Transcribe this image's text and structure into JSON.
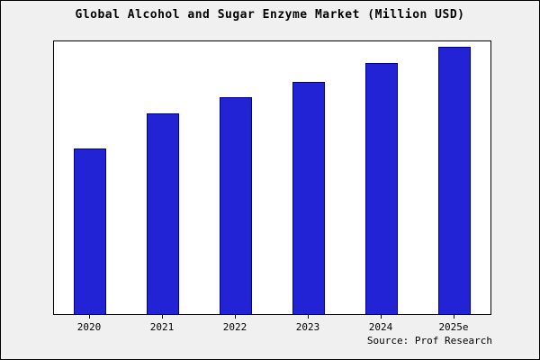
{
  "chart_data": {
    "type": "bar",
    "title": "Global Alcohol and Sugar Enzyme Market (Million USD)",
    "categories": [
      "2020",
      "2021",
      "2022",
      "2023",
      "2024",
      "2025e"
    ],
    "values": [
      62,
      75,
      81,
      87,
      94,
      100
    ],
    "xlabel": "",
    "ylabel": "",
    "ylim": [
      0,
      102
    ],
    "grid": false,
    "legend": "none",
    "bar_color": "#2323d6",
    "bar_border_color": "#00008b",
    "plot_bg": "#ffffff",
    "outer_bg": "#f0f0f0"
  },
  "source": {
    "label": "Source: Prof Research"
  }
}
